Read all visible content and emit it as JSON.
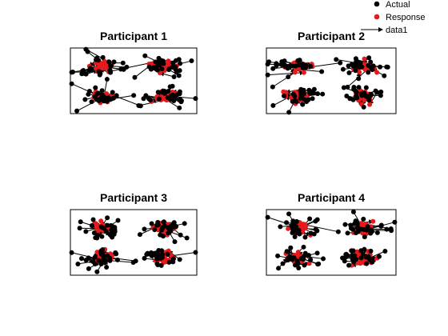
{
  "chart_data": {
    "type": "scatter",
    "legend": {
      "placement": "top-right",
      "entries": [
        {
          "label": "Actual",
          "marker": "dot",
          "color": "#000000"
        },
        {
          "label": "Response",
          "marker": "dot",
          "color": "#e41a1c"
        },
        {
          "label": "data1",
          "marker": "arrow",
          "color": "#000000"
        }
      ]
    },
    "grid": false,
    "axes_ticks": false,
    "xlim": [
      0,
      100
    ],
    "ylim": [
      0,
      50
    ],
    "panels": [
      {
        "title": "Participant 1",
        "seed": 11
      },
      {
        "title": "Participant 2",
        "seed": 23
      },
      {
        "title": "Participant 3",
        "seed": 37
      },
      {
        "title": "Participant 4",
        "seed": 51
      }
    ],
    "clusters": [
      {
        "cx": 25,
        "cy": 36
      },
      {
        "cx": 75,
        "cy": 36
      },
      {
        "cx": 25,
        "cy": 13
      },
      {
        "cx": 75,
        "cy": 13
      }
    ],
    "points_per_cluster": 30,
    "colors": {
      "actual": "#000000",
      "response": "#e41a1c",
      "arrow": "#000000",
      "axes": "#000000"
    }
  }
}
